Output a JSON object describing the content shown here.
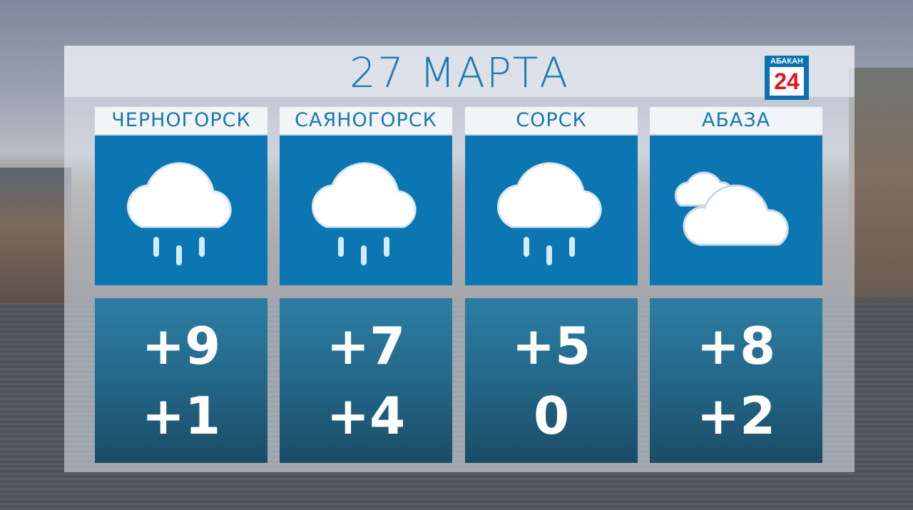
{
  "title": "27 МАРТА",
  "logo": {
    "top": "АБАКАН",
    "number": "24",
    "colors": {
      "brand_blue": "#0a72b4",
      "number_red": "#e0141c"
    }
  },
  "colors": {
    "accent": "#1a78ad",
    "icon_bg": "#0b76b1"
  },
  "cities": [
    {
      "name": "ЧЕРНОГОРСК",
      "icon": "rain-cloud-icon",
      "max": "+9",
      "min": "+1"
    },
    {
      "name": "САЯНОГОРСК",
      "icon": "rain-cloud-icon",
      "max": "+7",
      "min": "+4"
    },
    {
      "name": "СОРСК",
      "icon": "rain-cloud-icon",
      "max": "+5",
      "min": "0"
    },
    {
      "name": "АБАЗА",
      "icon": "overcast-clouds-icon",
      "max": "+8",
      "min": "+2"
    }
  ]
}
